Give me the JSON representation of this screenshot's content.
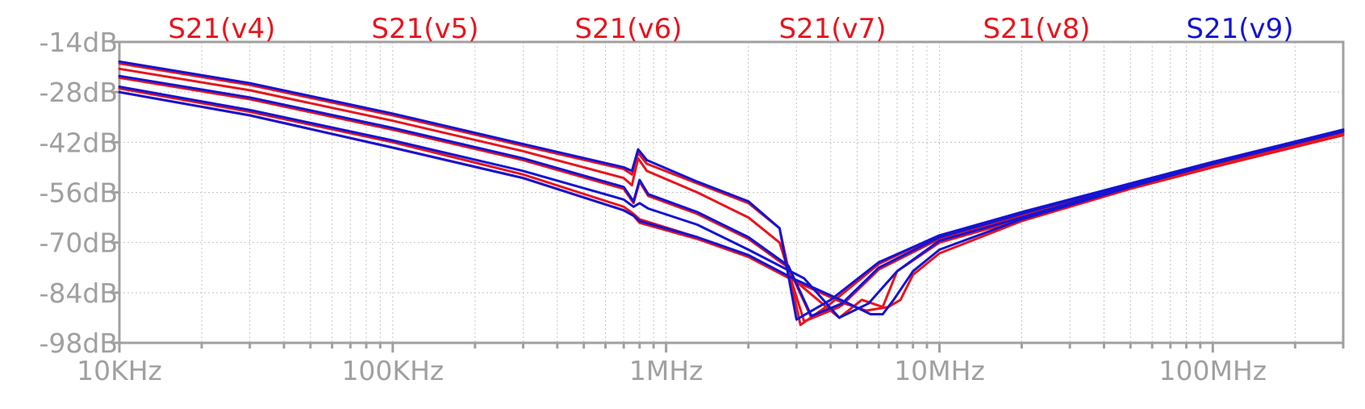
{
  "chart_data": {
    "type": "line",
    "x_scale": "log",
    "xlim": [
      10000,
      300000000
    ],
    "ylim": [
      -98,
      -14
    ],
    "grid": true,
    "legend_placement": "top",
    "y_ticks": [
      {
        "value": -14,
        "label": "-14dB"
      },
      {
        "value": -28,
        "label": "-28dB"
      },
      {
        "value": -42,
        "label": "-42dB"
      },
      {
        "value": -56,
        "label": "-56dB"
      },
      {
        "value": -70,
        "label": "-70dB"
      },
      {
        "value": -84,
        "label": "-84dB"
      },
      {
        "value": -98,
        "label": "-98dB"
      }
    ],
    "x_ticks": [
      {
        "value": 10000,
        "label": "10KHz"
      },
      {
        "value": 100000,
        "label": "100KHz"
      },
      {
        "value": 1000000,
        "label": "1MHz"
      },
      {
        "value": 10000000,
        "label": "10MHz"
      },
      {
        "value": 100000000,
        "label": "100MHz"
      }
    ],
    "series": [
      {
        "name": "S21(v4)",
        "color": "#e8141e",
        "x": [
          10000,
          30000,
          100000,
          300000,
          700000,
          750000,
          790000,
          850000,
          1300000,
          2000000,
          2600000,
          3100000,
          4000000,
          6000000,
          10000000,
          20000000,
          50000000,
          100000000,
          300000000
        ],
        "y": [
          -20,
          -26,
          -34.5,
          -43,
          -49.5,
          -51,
          -45,
          -48,
          -53.5,
          -59,
          -66,
          -93,
          -87,
          -76,
          -68,
          -62,
          -54,
          -48,
          -39
        ]
      },
      {
        "name": "S21(v5)",
        "color": "#e8141e",
        "x": [
          10000,
          30000,
          100000,
          300000,
          700000,
          750000,
          790000,
          850000,
          1300000,
          2000000,
          2600000,
          3200000,
          4300000,
          6000000,
          10000000,
          20000000,
          50000000,
          100000000,
          300000000
        ],
        "y": [
          -21.5,
          -27.5,
          -36,
          -44.5,
          -52,
          -54,
          -46.5,
          -50,
          -56,
          -63,
          -70,
          -92,
          -88,
          -77,
          -69,
          -62.5,
          -54,
          -48,
          -39.5
        ]
      },
      {
        "name": "S21(v6)",
        "color": "#e8141e",
        "x": [
          10000,
          30000,
          100000,
          300000,
          700000,
          760000,
          800000,
          860000,
          1300000,
          2000000,
          2800000,
          3400000,
          4400000,
          6000000,
          10000000,
          20000000,
          50000000,
          100000000,
          300000000
        ],
        "y": [
          -24,
          -30,
          -38.5,
          -47,
          -55,
          -59,
          -53,
          -57,
          -62,
          -69,
          -77,
          -91,
          -87.5,
          -77.5,
          -69,
          -63,
          -54,
          -48,
          -39.5
        ]
      },
      {
        "name": "S21(v7)",
        "color": "#e8141e",
        "x": [
          10000,
          30000,
          100000,
          300000,
          700000,
          760000,
          800000,
          1300000,
          2000000,
          3000000,
          4300000,
          5200000,
          6200000,
          7000000,
          10000000,
          20000000,
          50000000,
          100000000,
          300000000
        ],
        "y": [
          -27,
          -33.5,
          -42,
          -51,
          -60,
          -62,
          -63.5,
          -68.5,
          -74,
          -81,
          -91,
          -86,
          -88,
          -78,
          -70,
          -63.5,
          -54.5,
          -48.5,
          -40
        ]
      },
      {
        "name": "S21(v8)",
        "color": "#e8141e",
        "x": [
          10000,
          30000,
          100000,
          300000,
          700000,
          760000,
          800000,
          1300000,
          2000000,
          3000000,
          4500000,
          5400000,
          6500000,
          7200000,
          8000000,
          10000000,
          20000000,
          50000000,
          100000000,
          300000000
        ],
        "y": [
          -28,
          -34.5,
          -43.5,
          -52,
          -61,
          -62.5,
          -64.5,
          -69,
          -74,
          -81,
          -87,
          -89,
          -88,
          -86,
          -79,
          -73,
          -64,
          -55,
          -49,
          -40
        ]
      },
      {
        "name": "S21(v9)",
        "color": "#1414d2",
        "x": [
          10000,
          30000,
          100000,
          300000,
          700000,
          750000,
          790000,
          850000,
          1300000,
          2000000,
          2600000,
          3000000,
          4000000,
          6000000,
          10000000,
          20000000,
          50000000,
          100000000,
          300000000
        ],
        "y": [
          -19.5,
          -25.5,
          -34,
          -42.5,
          -49,
          -50,
          -44,
          -47,
          -53,
          -58.5,
          -66,
          -91.5,
          -86,
          -75.5,
          -68,
          -61.5,
          -53.5,
          -47.5,
          -38.5
        ]
      }
    ],
    "extra_traces": [
      {
        "color": "#1414d2",
        "x": [
          10000,
          30000,
          100000,
          300000,
          700000,
          760000,
          800000,
          860000,
          1300000,
          2000000,
          2800000,
          3400000,
          4400000,
          6000000,
          10000000,
          20000000,
          50000000,
          100000000,
          300000000
        ],
        "y": [
          -23.5,
          -29.5,
          -38,
          -46.5,
          -54.5,
          -58.5,
          -52.5,
          -56.5,
          -61.5,
          -68.5,
          -76.5,
          -90.5,
          -87,
          -77,
          -68.5,
          -62,
          -53.5,
          -47.5,
          -38.5
        ]
      },
      {
        "color": "#1414d2",
        "x": [
          10000,
          30000,
          100000,
          300000,
          700000,
          760000,
          800000,
          860000,
          1300000,
          2000000,
          3200000,
          4300000,
          5500000,
          7000000,
          10000000,
          20000000,
          50000000,
          100000000,
          300000000
        ],
        "y": [
          -26.5,
          -33,
          -41.5,
          -50,
          -58,
          -60,
          -59,
          -60.5,
          -65,
          -72,
          -80,
          -91,
          -87,
          -78,
          -69.5,
          -63,
          -54,
          -48,
          -39
        ]
      },
      {
        "color": "#1414d2",
        "x": [
          10000,
          30000,
          100000,
          300000,
          700000,
          760000,
          800000,
          1300000,
          2000000,
          3000000,
          4500000,
          5600000,
          6200000,
          6800000,
          8000000,
          10000000,
          20000000,
          50000000,
          100000000,
          300000000
        ],
        "y": [
          -28,
          -34.5,
          -43.5,
          -52,
          -61,
          -62.5,
          -64,
          -68.5,
          -73.5,
          -80.5,
          -86.5,
          -90,
          -90,
          -86,
          -78,
          -72,
          -63.5,
          -54.5,
          -48,
          -38.5
        ]
      }
    ]
  }
}
